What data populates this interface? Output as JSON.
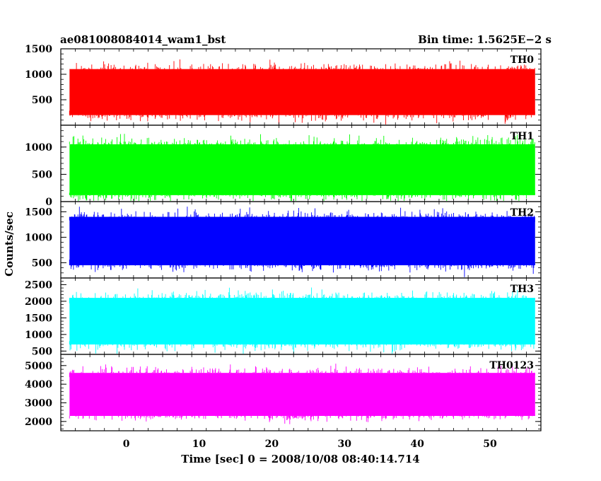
{
  "header": {
    "title": "ae081008084014_wam1_bst",
    "bin_time": "Bin time: 1.5625E−2 s"
  },
  "chart_data": {
    "type": "line",
    "xlabel": "Time [sec] 0 = 2008/10/08 08:40:14.714",
    "ylabel": "Counts/sec",
    "xlim": [
      -9,
      57
    ],
    "data_x_range": [
      -7.8,
      56.2
    ],
    "x_ticks": [
      0,
      10,
      20,
      30,
      40,
      50
    ],
    "x_tick_labels": [
      "0",
      "10",
      "20",
      "30",
      "40",
      "50"
    ],
    "panels": [
      {
        "name": "TH0",
        "color": "#ff0000",
        "ylim": [
          0,
          1500
        ],
        "y_ticks": [
          500,
          1000,
          1500
        ],
        "y_tick_labels": [
          "500",
          "1000",
          "1500"
        ],
        "typical_low": 200,
        "typical_high": 1100,
        "mean": 650
      },
      {
        "name": "TH1",
        "color": "#00ff00",
        "ylim": [
          0,
          1400
        ],
        "y_ticks": [
          0,
          500,
          1000
        ],
        "y_tick_labels": [
          "0",
          "500",
          "1000"
        ],
        "typical_low": 120,
        "typical_high": 1050,
        "mean": 600
      },
      {
        "name": "TH2",
        "color": "#0000ff",
        "ylim": [
          200,
          1700
        ],
        "y_ticks": [
          500,
          1000,
          1500
        ],
        "y_tick_labels": [
          "500",
          "1000",
          "1500"
        ],
        "typical_low": 450,
        "typical_high": 1400,
        "mean": 950
      },
      {
        "name": "TH3",
        "color": "#00ffff",
        "ylim": [
          400,
          2700
        ],
        "y_ticks": [
          500,
          1000,
          1500,
          2000,
          2500
        ],
        "y_tick_labels": [
          "500",
          "1000",
          "1500",
          "2000",
          "2500"
        ],
        "typical_low": 700,
        "typical_high": 2100,
        "mean": 1400
      },
      {
        "name": "TH0123",
        "color": "#ff00ff",
        "ylim": [
          1500,
          5600
        ],
        "y_ticks": [
          2000,
          3000,
          4000,
          5000
        ],
        "y_tick_labels": [
          "2000",
          "3000",
          "4000",
          "5000"
        ],
        "typical_low": 2300,
        "typical_high": 4600,
        "mean": 3450
      }
    ]
  }
}
